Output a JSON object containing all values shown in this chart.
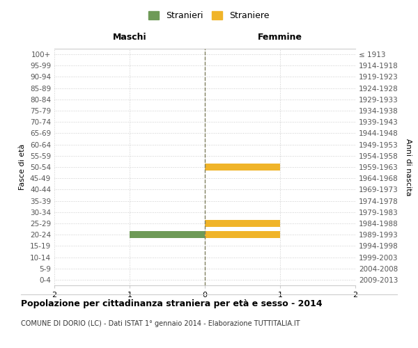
{
  "age_groups": [
    "100+",
    "95-99",
    "90-94",
    "85-89",
    "80-84",
    "75-79",
    "70-74",
    "65-69",
    "60-64",
    "55-59",
    "50-54",
    "45-49",
    "40-44",
    "35-39",
    "30-34",
    "25-29",
    "20-24",
    "15-19",
    "10-14",
    "5-9",
    "0-4"
  ],
  "birth_years": [
    "≤ 1913",
    "1914-1918",
    "1919-1923",
    "1924-1928",
    "1929-1933",
    "1934-1938",
    "1939-1943",
    "1944-1948",
    "1949-1953",
    "1954-1958",
    "1959-1963",
    "1964-1968",
    "1969-1973",
    "1974-1978",
    "1979-1983",
    "1984-1988",
    "1989-1993",
    "1994-1998",
    "1999-2003",
    "2004-2008",
    "2009-2013"
  ],
  "maschi_values": [
    0,
    0,
    0,
    0,
    0,
    0,
    0,
    0,
    0,
    0,
    0,
    0,
    0,
    0,
    0,
    0,
    -1,
    0,
    0,
    0,
    0
  ],
  "femmine_values": [
    0,
    0,
    0,
    0,
    0,
    0,
    0,
    0,
    0,
    0,
    1,
    0,
    0,
    0,
    0,
    1,
    1,
    0,
    0,
    0,
    0
  ],
  "color_maschi": "#6e9a57",
  "color_femmine": "#f0b429",
  "xlim": [
    -2,
    2
  ],
  "xticks": [
    -2,
    -1,
    0,
    1,
    2
  ],
  "xticklabels": [
    "2",
    "1",
    "0",
    "1",
    "2"
  ],
  "title": "Popolazione per cittadinanza straniera per età e sesso - 2014",
  "subtitle": "COMUNE DI DORIO (LC) - Dati ISTAT 1° gennaio 2014 - Elaborazione TUTTITALIA.IT",
  "label_maschi": "Maschi",
  "label_femmine": "Femmine",
  "legend_stranieri": "Stranieri",
  "legend_straniere": "Straniere",
  "ylabel_left": "Fasce di età",
  "ylabel_right": "Anni di nascita",
  "center_line_color": "#808060",
  "grid_color": "#cccccc",
  "background_color": "#ffffff"
}
